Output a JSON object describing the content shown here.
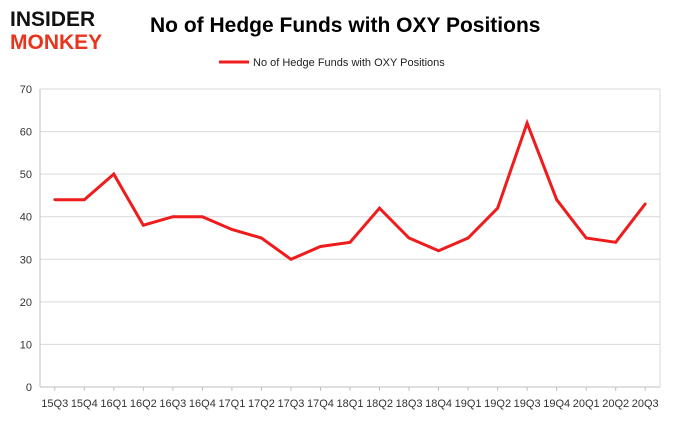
{
  "logo": {
    "line1": "INSIDER",
    "line2": "MONKEY"
  },
  "colors": {
    "series": "#ee1c1c",
    "grid": "#d9d9d9",
    "axis": "#bfbfbf",
    "logo_dark": "#111111",
    "logo_red": "#e8341c"
  },
  "chart_data": {
    "type": "line",
    "title": "No of Hedge Funds with OXY Positions",
    "xlabel": "",
    "ylabel": "",
    "ylim": [
      0,
      70
    ],
    "yticks": [
      0,
      10,
      20,
      30,
      40,
      50,
      60,
      70
    ],
    "grid": true,
    "legend_position": "top",
    "categories": [
      "15Q3",
      "15Q4",
      "16Q1",
      "16Q2",
      "16Q3",
      "16Q4",
      "17Q1",
      "17Q2",
      "17Q3",
      "17Q4",
      "18Q1",
      "18Q2",
      "18Q3",
      "18Q4",
      "19Q1",
      "19Q2",
      "19Q3",
      "19Q4",
      "20Q1",
      "20Q2",
      "20Q3"
    ],
    "series": [
      {
        "name": "No of Hedge Funds with OXY Positions",
        "values": [
          44,
          44,
          50,
          38,
          40,
          40,
          37,
          35,
          30,
          33,
          34,
          42,
          35,
          32,
          35,
          42,
          62,
          44,
          35,
          34,
          43
        ]
      }
    ]
  }
}
